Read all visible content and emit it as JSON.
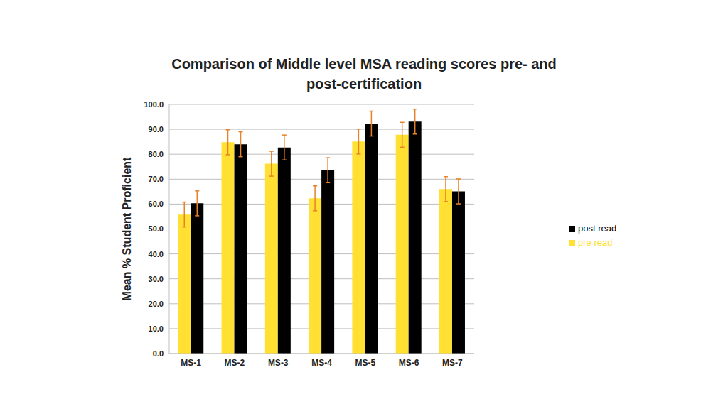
{
  "chart_data": {
    "type": "bar",
    "title": "Comparison of Middle level MSA reading scores pre- and post-certification",
    "y_label": "Mean % Student Proficient",
    "categories": [
      "MS-1",
      "MS-2",
      "MS-3",
      "MS-4",
      "MS-5",
      "MS-6",
      "MS-7"
    ],
    "series": [
      {
        "name": "pre read",
        "color": "#FFE033",
        "values": [
          55.8,
          84.8,
          76.2,
          62.3,
          85.1,
          87.8,
          66.0
        ],
        "errors": [
          5,
          5,
          5,
          5,
          5,
          5,
          5
        ]
      },
      {
        "name": "post read",
        "color": "#000000",
        "values": [
          60.3,
          84.0,
          82.7,
          73.6,
          92.3,
          93.1,
          65.1
        ],
        "errors": [
          5,
          5,
          5,
          5,
          5,
          5,
          5
        ]
      }
    ],
    "ylim": [
      0,
      100
    ],
    "yticks": [
      {
        "value": 0,
        "label": "0.0"
      },
      {
        "value": 10,
        "label": "10.0"
      },
      {
        "value": 20,
        "label": "20.0"
      },
      {
        "value": 30,
        "label": "30.0"
      },
      {
        "value": 40,
        "label": "40.0"
      },
      {
        "value": 50,
        "label": "50.0"
      },
      {
        "value": 60,
        "label": "60.0"
      },
      {
        "value": 70,
        "label": "70.0"
      },
      {
        "value": 80,
        "label": "80.0"
      },
      {
        "value": 90,
        "label": "90.0"
      },
      {
        "value": 100,
        "label": "100.0"
      }
    ],
    "grid": true,
    "legend": "right"
  }
}
